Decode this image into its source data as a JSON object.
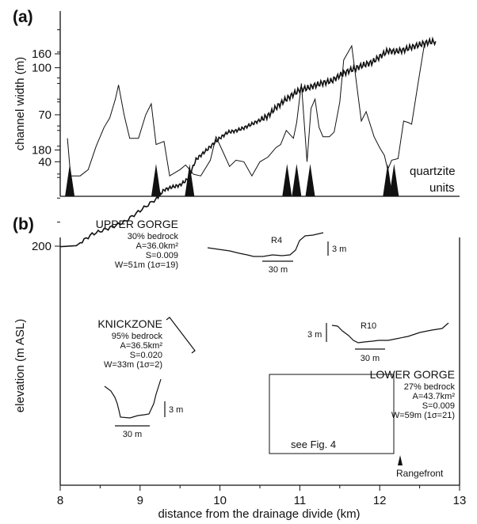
{
  "chart_data": [
    {
      "panel": "(a)",
      "type": "line",
      "ylabel": "channel width (m)",
      "xlim": [
        8,
        13
      ],
      "ylim": [
        20,
        120
      ],
      "yticks": [
        40,
        70,
        100
      ],
      "series": [
        {
          "values": [
            [
              8.09,
              55
            ],
            [
              8.13,
              31
            ],
            [
              8.25,
              31
            ],
            [
              8.35,
              35
            ],
            [
              8.45,
              50
            ],
            [
              8.55,
              62
            ],
            [
              8.62,
              68
            ],
            [
              8.69,
              80
            ],
            [
              8.73,
              89
            ],
            [
              8.8,
              70
            ],
            [
              8.87,
              55
            ],
            [
              8.98,
              55
            ],
            [
              9.07,
              70
            ],
            [
              9.14,
              77
            ],
            [
              9.2,
              51
            ],
            [
              9.3,
              53
            ],
            [
              9.37,
              31
            ],
            [
              9.5,
              35
            ],
            [
              9.57,
              38
            ],
            [
              9.67,
              32
            ],
            [
              9.76,
              31
            ],
            [
              9.88,
              41
            ],
            [
              9.95,
              56
            ],
            [
              10.05,
              45
            ],
            [
              10.12,
              37
            ],
            [
              10.2,
              41
            ],
            [
              10.3,
              40
            ],
            [
              10.4,
              31
            ],
            [
              10.5,
              40
            ],
            [
              10.6,
              43
            ],
            [
              10.7,
              49
            ],
            [
              10.76,
              51
            ],
            [
              10.83,
              60
            ],
            [
              10.92,
              55
            ],
            [
              10.96,
              65
            ],
            [
              11.02,
              90
            ],
            [
              11.09,
              40
            ],
            [
              11.14,
              74
            ],
            [
              11.19,
              80
            ],
            [
              11.24,
              62
            ],
            [
              11.29,
              56
            ],
            [
              11.37,
              56
            ],
            [
              11.43,
              59
            ],
            [
              11.5,
              78
            ],
            [
              11.55,
              105
            ],
            [
              11.65,
              114
            ],
            [
              11.77,
              66
            ],
            [
              11.83,
              72
            ],
            [
              11.93,
              56
            ],
            [
              12.0,
              49
            ],
            [
              12.06,
              44
            ],
            [
              12.1,
              35
            ],
            [
              12.15,
              41
            ],
            [
              12.23,
              42
            ],
            [
              12.3,
              66
            ],
            [
              12.36,
              65
            ],
            [
              12.4,
              64
            ],
            [
              12.48,
              90
            ],
            [
              12.56,
              115
            ]
          ]
        }
      ],
      "quartzite_units": [
        8.12,
        9.2,
        9.62,
        10.84,
        10.96,
        11.13,
        12.1,
        12.18
      ],
      "legend_text": [
        "quartzite",
        "units"
      ]
    },
    {
      "panel": "(b)",
      "type": "line",
      "xlabel": "distance from the drainage divide (km)",
      "ylabel": "elevation (m ASL)",
      "xlim": [
        8,
        13
      ],
      "ylim": [
        150,
        203
      ],
      "xticks": [
        8,
        9,
        10,
        11,
        12,
        13
      ],
      "yticks": [
        160,
        180,
        200
      ],
      "series": [
        {
          "values": [
            [
              8.0,
              200.1
            ],
            [
              8.2,
              199.9
            ],
            [
              8.4,
              197.5
            ],
            [
              8.6,
              196.3
            ],
            [
              8.8,
              195.0
            ],
            [
              9.0,
              192.6
            ],
            [
              9.2,
              190.2
            ],
            [
              9.3,
              188.3
            ],
            [
              9.4,
              187.7
            ],
            [
              9.5,
              187.3
            ],
            [
              9.6,
              186.0
            ],
            [
              9.7,
              182.0
            ],
            [
              9.8,
              180.5
            ],
            [
              9.9,
              179.0
            ],
            [
              10.0,
              177.5
            ],
            [
              10.1,
              176.3
            ],
            [
              10.2,
              176.0
            ],
            [
              10.3,
              175.4
            ],
            [
              10.4,
              174.6
            ],
            [
              10.5,
              173.8
            ],
            [
              10.6,
              172.9
            ],
            [
              10.7,
              171.2
            ],
            [
              10.8,
              169.8
            ],
            [
              10.9,
              168.6
            ],
            [
              11.0,
              167.5
            ],
            [
              11.1,
              167.1
            ],
            [
              11.2,
              166.5
            ],
            [
              11.3,
              166.0
            ],
            [
              11.4,
              165.6
            ],
            [
              11.5,
              164.5
            ],
            [
              11.6,
              163.6
            ],
            [
              11.7,
              163.0
            ],
            [
              11.8,
              162.3
            ],
            [
              11.9,
              161.8
            ],
            [
              12.0,
              160.6
            ],
            [
              12.1,
              159.4
            ],
            [
              12.2,
              159.5
            ],
            [
              12.3,
              159.2
            ],
            [
              12.4,
              158.6
            ],
            [
              12.5,
              158.1
            ],
            [
              12.6,
              157.6
            ],
            [
              12.7,
              157.4
            ]
          ]
        }
      ],
      "annotations": {
        "upper_gorge": {
          "title": "UPPER GORGE",
          "lines": [
            "30% bedrock",
            "A=36.0km²",
            "S=0.009",
            "W=51m (1σ=19)"
          ],
          "profile_label": "R4",
          "vscale": "3 m",
          "hscale": "30 m"
        },
        "knickzone": {
          "title": "KNICKZONE",
          "lines": [
            "95% bedrock",
            "A=36.5km²",
            "S=0.020",
            "W=33m (1σ=2)"
          ],
          "vscale": "3 m",
          "hscale": "30 m"
        },
        "lower_gorge": {
          "title": "LOWER GORGE",
          "lines": [
            "27% bedrock",
            "A=43.7km²",
            "S=0.009",
            "W=59m (1σ=21)"
          ],
          "profile_label": "R10",
          "vscale": "3 m",
          "hscale": "30 m"
        },
        "see_fig": "see Fig. 4",
        "rangefront": "Rangefront"
      }
    }
  ]
}
